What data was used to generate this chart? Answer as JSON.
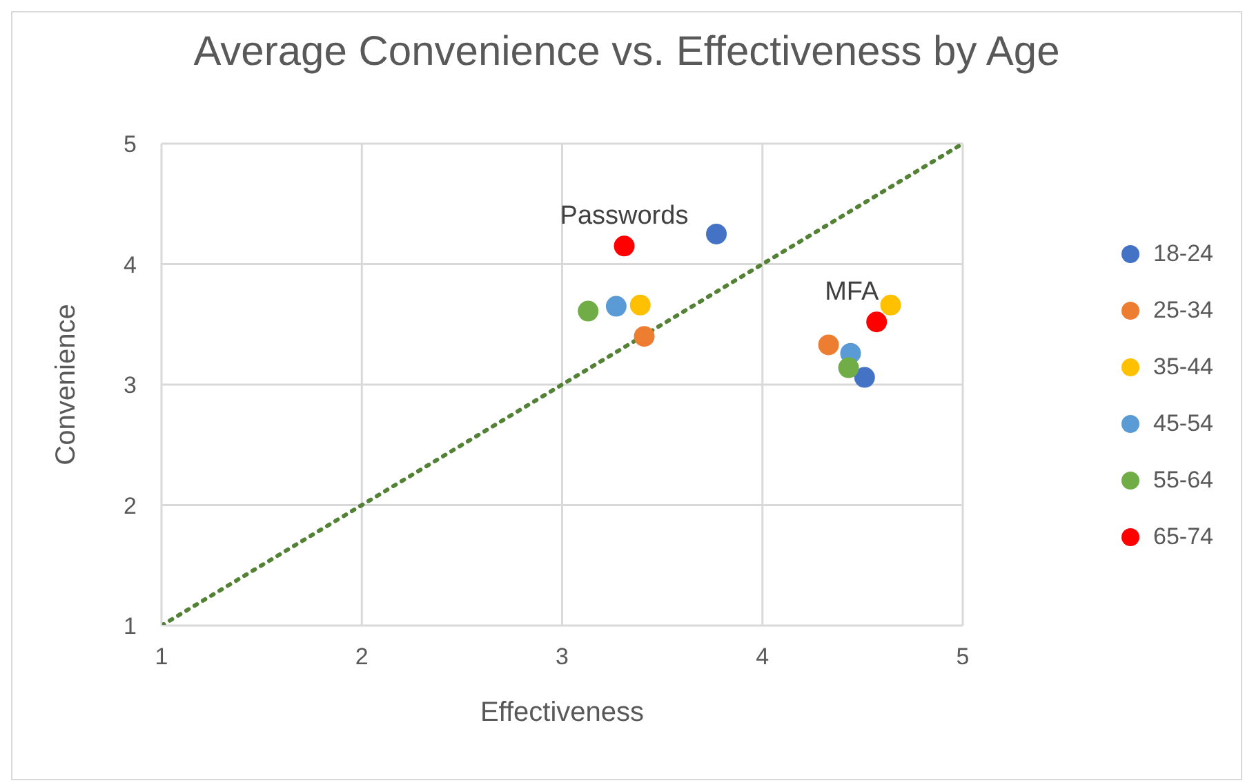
{
  "chart_data": {
    "type": "scatter",
    "title": "Average Convenience vs. Effectiveness by Age",
    "xlabel": "Effectiveness",
    "ylabel": "Convenience",
    "xlim": [
      1,
      5
    ],
    "xticks": [
      1,
      2,
      3,
      4,
      5
    ],
    "ylim": [
      1,
      5
    ],
    "yticks": [
      1,
      2,
      3,
      4,
      5
    ],
    "grid": true,
    "legend": "right",
    "marker": "circle",
    "series": [
      {
        "name": "18-24",
        "color": "#4472c4",
        "x": [
          3.77,
          4.51
        ],
        "values": [
          4.25,
          3.06
        ]
      },
      {
        "name": "25-34",
        "color": "#ed7d31",
        "x": [
          3.41,
          4.33
        ],
        "values": [
          3.4,
          3.33
        ]
      },
      {
        "name": "35-44",
        "color": "#ffc000",
        "x": [
          3.39,
          4.64
        ],
        "values": [
          3.66,
          3.66
        ]
      },
      {
        "name": "45-54",
        "color": "#5b9bd5",
        "x": [
          3.27,
          4.44
        ],
        "values": [
          3.65,
          3.26
        ]
      },
      {
        "name": "55-64",
        "color": "#70ad47",
        "x": [
          3.13,
          4.43
        ],
        "values": [
          3.61,
          3.14
        ]
      },
      {
        "name": "65-74",
        "color": "#ff0000",
        "x": [
          3.31,
          4.57
        ],
        "values": [
          4.15,
          3.52
        ]
      },
      {
        "type": "line",
        "color": "#548235",
        "line_style": "dotted",
        "marker": "none",
        "x": [
          1,
          5
        ],
        "values": [
          1,
          5
        ]
      }
    ],
    "annotations": [
      {
        "text": "Passwords",
        "x": 3.31,
        "y": 4.15
      },
      {
        "text": "MFA",
        "x": 4.57,
        "y": 3.52
      }
    ]
  }
}
